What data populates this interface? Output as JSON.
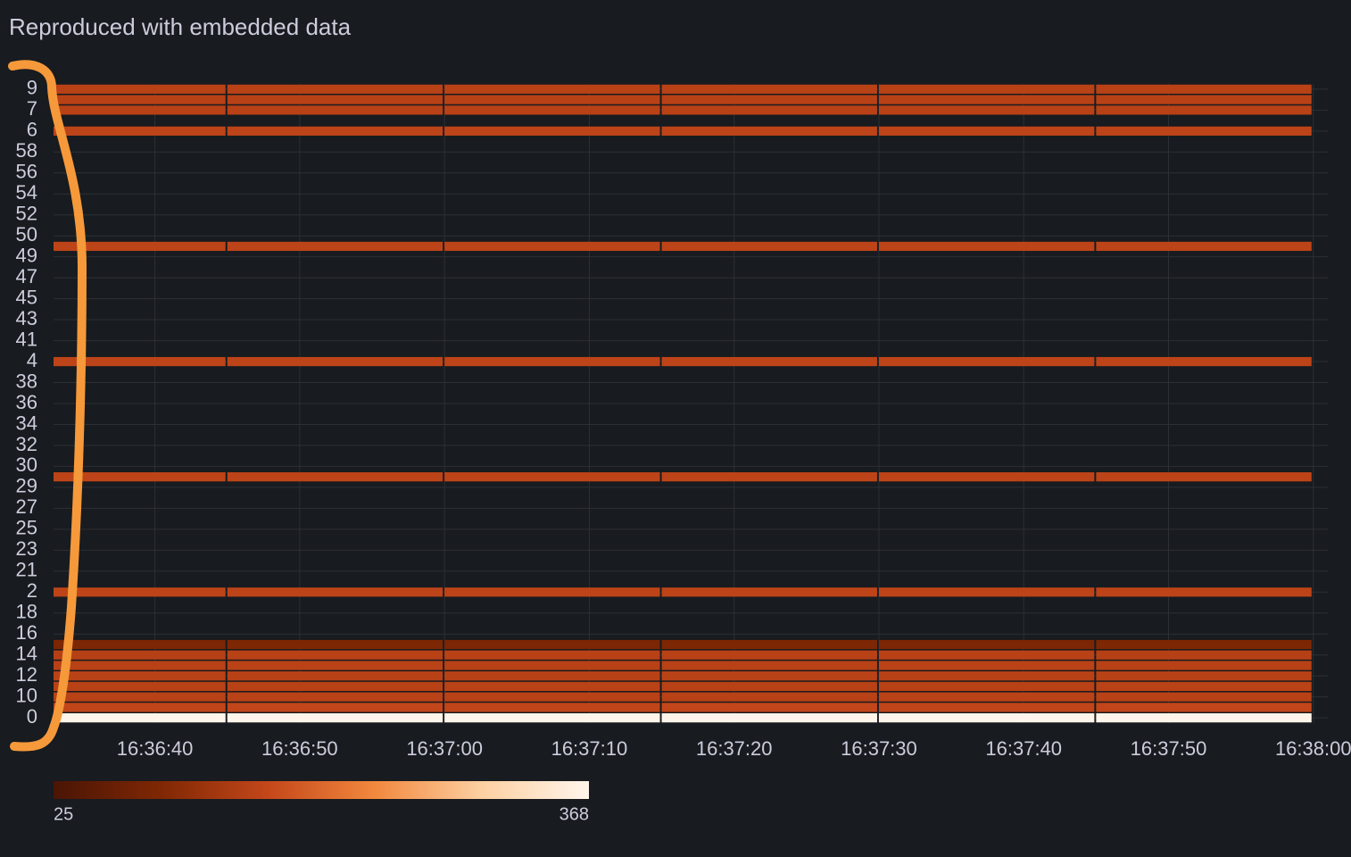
{
  "chart_data": {
    "type": "heatmap",
    "title": "Reproduced with embedded data",
    "categories": [
      "0",
      null,
      "10",
      null,
      "12",
      null,
      "14",
      null,
      "16",
      null,
      "18",
      null,
      "2",
      null,
      "21",
      null,
      "23",
      null,
      "25",
      null,
      "27",
      null,
      "29",
      null,
      "30",
      null,
      "32",
      null,
      "34",
      null,
      "36",
      null,
      "38",
      null,
      "4",
      null,
      "41",
      null,
      "43",
      null,
      "45",
      null,
      "47",
      null,
      "49",
      null,
      "50",
      null,
      "52",
      null,
      "54",
      null,
      "56",
      null,
      "58",
      null,
      "6",
      null,
      "7",
      null,
      "9"
    ],
    "bins": [
      "16:36:30",
      "16:36:45",
      "16:37:00",
      "16:37:15",
      "16:37:30",
      "16:37:45",
      "16:38:00"
    ],
    "values": [
      [
        368,
        368,
        368,
        368,
        368,
        368
      ],
      [
        158,
        160,
        158,
        160,
        158,
        160
      ],
      [
        150,
        152,
        150,
        150,
        152,
        150
      ],
      [
        150,
        150,
        152,
        150,
        150,
        152
      ],
      [
        152,
        150,
        150,
        152,
        150,
        150
      ],
      [
        150,
        152,
        150,
        150,
        152,
        150
      ],
      [
        148,
        150,
        150,
        150,
        150,
        148
      ],
      [
        90,
        92,
        90,
        92,
        90,
        92
      ],
      null,
      null,
      null,
      null,
      [
        155,
        155,
        155,
        155,
        155,
        155
      ],
      null,
      null,
      null,
      null,
      null,
      null,
      null,
      null,
      null,
      null,
      [
        155,
        155,
        155,
        155,
        155,
        155
      ],
      null,
      null,
      null,
      null,
      null,
      null,
      null,
      null,
      null,
      null,
      [
        155,
        155,
        155,
        155,
        155,
        155
      ],
      null,
      null,
      null,
      null,
      null,
      null,
      null,
      null,
      null,
      null,
      [
        155,
        155,
        155,
        155,
        155,
        155
      ],
      null,
      null,
      null,
      null,
      null,
      null,
      null,
      null,
      null,
      null,
      [
        155,
        155,
        155,
        155,
        155,
        155
      ],
      null,
      [
        150,
        150,
        150,
        150,
        150,
        150
      ],
      [
        150,
        150,
        150,
        150,
        150,
        150
      ],
      [
        150,
        150,
        150,
        150,
        150,
        150
      ]
    ],
    "xlim": [
      "16:36:33",
      "16:38:01"
    ],
    "xticks": [
      "16:36:40",
      "16:36:50",
      "16:37:00",
      "16:37:10",
      "16:37:20",
      "16:37:30",
      "16:37:40",
      "16:37:50",
      "16:38:00"
    ],
    "color_scale": {
      "min": 25,
      "max": 368,
      "colors": [
        "#4a1505",
        "#7f2704",
        "#c4471a",
        "#f2883e",
        "#fdd0a2",
        "#fff5eb"
      ]
    },
    "grid": true
  }
}
